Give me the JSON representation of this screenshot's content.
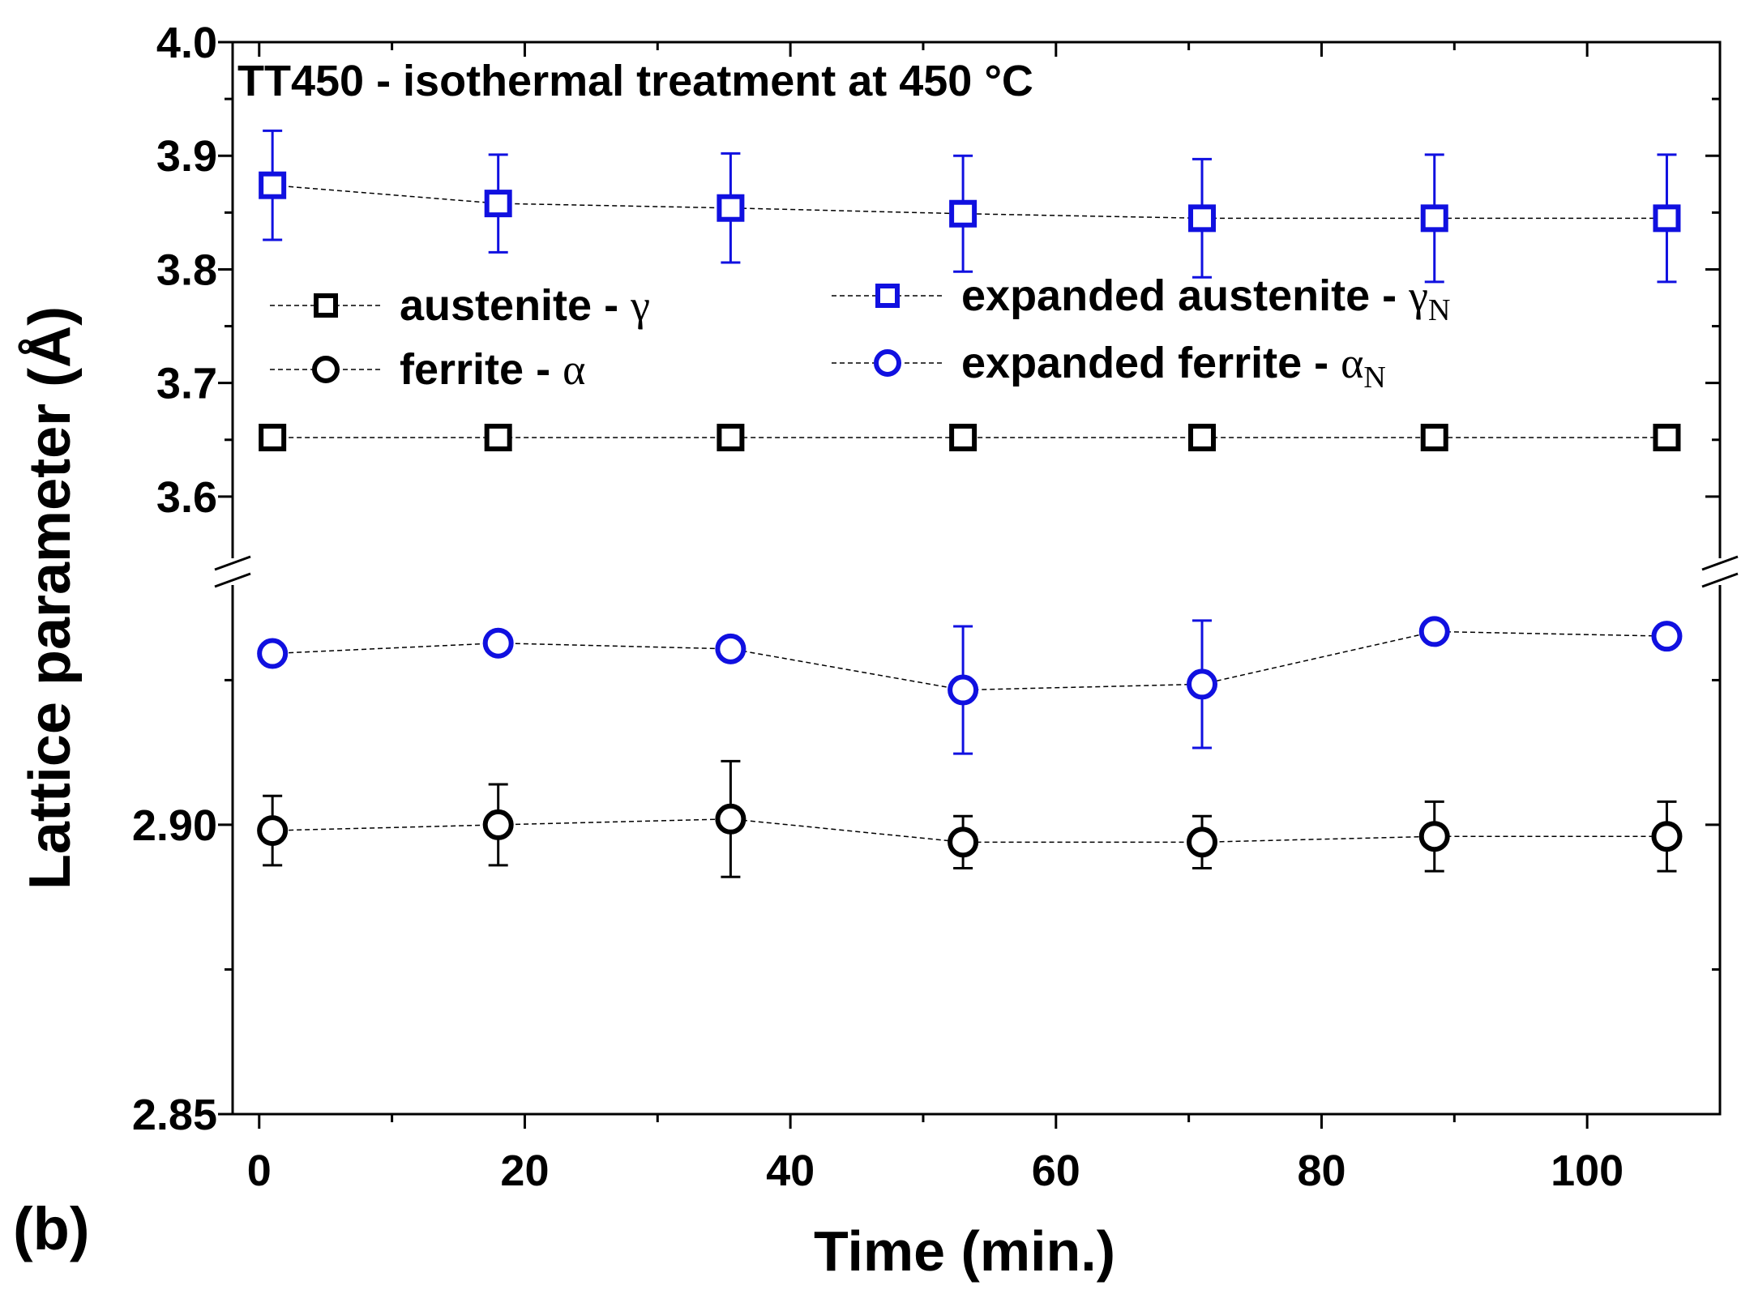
{
  "panel_label": "(b)",
  "chart_data": {
    "type": "scatter",
    "title": "TT450 - isothermal treatment at 450 °C",
    "xlabel": "Time (min.)",
    "ylabel": "Lattice parameter (Å)",
    "xlim": [
      -2,
      110
    ],
    "x_ticks": [
      0,
      20,
      40,
      60,
      80,
      100
    ],
    "x_minor_ticks": [
      10,
      30,
      50,
      70,
      90
    ],
    "y_axis_break": true,
    "y_upper": {
      "ylim": [
        3.55,
        4.0
      ],
      "ticks": [
        3.6,
        3.7,
        3.8,
        3.9,
        4.0
      ],
      "tick_labels": [
        "3.6",
        "3.7",
        "3.8",
        "3.9",
        "4.0"
      ],
      "minor_ticks": [
        3.65,
        3.75,
        3.85,
        3.95
      ]
    },
    "y_lower": {
      "ylim": [
        2.85,
        2.9406
      ],
      "ticks": [
        2.85,
        2.9
      ],
      "tick_labels": [
        "2.85",
        "2.90"
      ],
      "minor_ticks": [
        2.875,
        2.925
      ]
    },
    "x": [
      1,
      18,
      35.5,
      53,
      71,
      88.5,
      106
    ],
    "series": [
      {
        "name": "austenite - ",
        "symbol": "γ",
        "subscript": "",
        "marker": "square",
        "color": "#000000",
        "axis": "upper",
        "values": [
          3.652,
          3.652,
          3.652,
          3.652,
          3.652,
          3.652,
          3.652
        ],
        "errors": [
          0.006,
          0.006,
          0.006,
          0.006,
          0.006,
          0.006,
          0.006
        ]
      },
      {
        "name": "ferrite - ",
        "symbol": "α",
        "subscript": "",
        "marker": "circle",
        "color": "#000000",
        "axis": "lower",
        "values": [
          2.899,
          2.9,
          2.901,
          2.897,
          2.897,
          2.898,
          2.898
        ],
        "errors": [
          0.006,
          0.007,
          0.01,
          0.0045,
          0.0045,
          0.006,
          0.006
        ]
      },
      {
        "name": "expanded austenite - ",
        "symbol": "γ",
        "subscript": "N",
        "marker": "square",
        "color": "#1010e0",
        "axis": "upper",
        "values": [
          3.874,
          3.858,
          3.854,
          3.849,
          3.845,
          3.845,
          3.845
        ],
        "errors": [
          0.048,
          0.043,
          0.048,
          0.051,
          0.052,
          0.056,
          0.056
        ]
      },
      {
        "name": "expanded ferrite - ",
        "symbol": "α",
        "subscript": "N",
        "marker": "circle",
        "color": "#1010e0",
        "axis": "lower",
        "values": [
          2.9296,
          2.9314,
          2.9304,
          2.9233,
          2.9243,
          2.9334,
          2.9326
        ],
        "errors": [
          0.0015,
          0.0008,
          0.0018,
          0.011,
          0.011,
          0.0008,
          0.0004
        ]
      }
    ],
    "legend_position": "upper-center"
  }
}
